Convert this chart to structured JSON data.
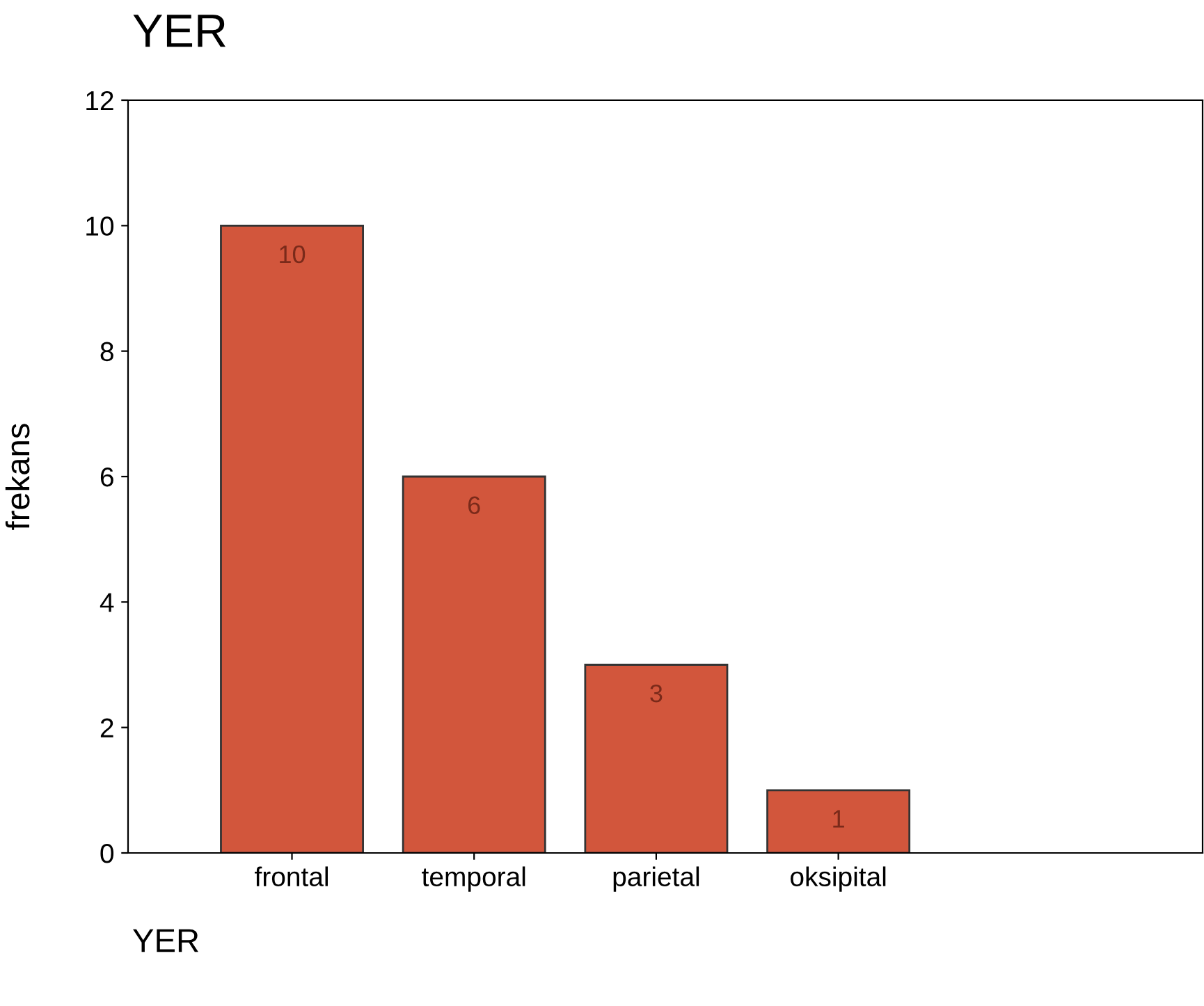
{
  "chart_data": {
    "type": "bar",
    "title": "YER",
    "xlabel": "YER",
    "ylabel": "frekans",
    "categories": [
      "frontal",
      "temporal",
      "parietal",
      "oksipital"
    ],
    "values": [
      10,
      6,
      3,
      1
    ],
    "color": "#d2563c",
    "ylim": [
      0,
      12
    ],
    "yticks": [
      0,
      2,
      4,
      6,
      8,
      10,
      12
    ],
    "grid": false,
    "data_labels": true
  }
}
